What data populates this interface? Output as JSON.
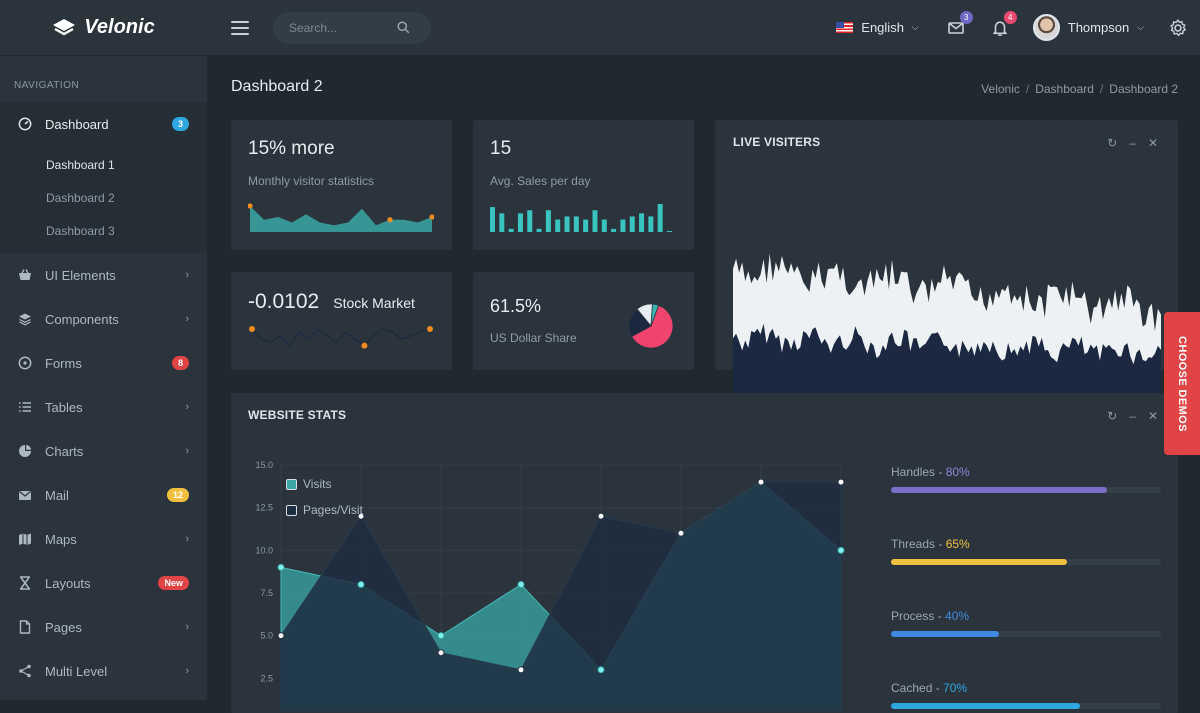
{
  "app": {
    "brand": "Velonic"
  },
  "topbar": {
    "search_placeholder": "Search...",
    "language": "English",
    "mail_count": "3",
    "notif_count": "4",
    "user_name": "Thompson"
  },
  "sidebar": {
    "title": "NAVIGATION",
    "items": [
      {
        "label": "Dashboard",
        "icon": "dashboard-icon",
        "badge": "3",
        "badge_color": "#2ea6e0"
      },
      {
        "label": "UI Elements",
        "icon": "shopping-basket-icon"
      },
      {
        "label": "Components",
        "icon": "layers-icon"
      },
      {
        "label": "Forms",
        "icon": "forms-icon",
        "badge": "8",
        "badge_color": "#e04444"
      },
      {
        "label": "Tables",
        "icon": "list-icon"
      },
      {
        "label": "Charts",
        "icon": "pie-chart-icon"
      },
      {
        "label": "Mail",
        "icon": "mail-icon",
        "badge": "12",
        "badge_color": "#f1c040"
      },
      {
        "label": "Maps",
        "icon": "map-icon"
      },
      {
        "label": "Layouts",
        "icon": "hourglass-icon",
        "badge": "New",
        "badge_color": "#e04444"
      },
      {
        "label": "Pages",
        "icon": "file-icon"
      },
      {
        "label": "Multi Level",
        "icon": "share-icon"
      }
    ],
    "dashboard_sub": [
      "Dashboard 1",
      "Dashboard 2",
      "Dashboard 3"
    ]
  },
  "page": {
    "title": "Dashboard 2",
    "breadcrumb": [
      "Velonic",
      "Dashboard",
      "Dashboard 2"
    ]
  },
  "stats": {
    "visitors": {
      "value": "15% more",
      "label": "Monthly visitor statistics"
    },
    "sales": {
      "value": "15",
      "label": "Avg. Sales per day"
    },
    "stock": {
      "value": "-0.0102",
      "label": "Stock Market"
    },
    "dollar": {
      "value": "61.5%",
      "label": "US Dollar Share"
    }
  },
  "live": {
    "title": "LIVE VISITERS"
  },
  "website": {
    "title": "WEBSITE STATS",
    "legend": [
      "Visits",
      "Pages/Visit"
    ],
    "progress": [
      {
        "name": "Handles",
        "sep": " - ",
        "pct_label": "80%",
        "value": 80,
        "color": "#7c6fc9"
      },
      {
        "name": "Threads",
        "sep": " - ",
        "pct_label": "65%",
        "value": 65,
        "color": "#f1c040"
      },
      {
        "name": "Process",
        "sep": " - ",
        "pct_label": "40%",
        "value": 40,
        "color": "#3f8ae0"
      },
      {
        "name": "Cached",
        "sep": " - ",
        "pct_label": "70%",
        "value": 70,
        "color": "#2ea6e0"
      }
    ]
  },
  "demo_tab": "CHOOSE DEMOS",
  "chart_data": [
    {
      "type": "area",
      "name": "website-stats",
      "ylim": [
        0,
        15
      ],
      "yticks": [
        "15.0",
        "12.5",
        "10.0",
        "7.5",
        "5.0",
        "2.5"
      ],
      "x": [
        0,
        1,
        2,
        3,
        4,
        5,
        6,
        7
      ],
      "series": [
        {
          "name": "Visits",
          "values": [
            9,
            8,
            5,
            8,
            3,
            11,
            14,
            10
          ],
          "color": "#3aa7a6"
        },
        {
          "name": "Pages/Visit",
          "values": [
            5,
            12,
            4,
            3,
            12,
            11,
            14,
            14
          ],
          "color": "#1e2d3f"
        }
      ]
    },
    {
      "type": "line",
      "name": "monthly-visitors-sparkline",
      "values": [
        8,
        3,
        4,
        2,
        5,
        2,
        1,
        2,
        7,
        1,
        3,
        3,
        2,
        4
      ],
      "highlight": [
        0,
        10,
        13
      ]
    },
    {
      "type": "bar",
      "name": "avg-sales-sparkline",
      "values": [
        8,
        6,
        1,
        6,
        7,
        1,
        7,
        4,
        5,
        5,
        4,
        7,
        4,
        1,
        4,
        5,
        6,
        5,
        9,
        0
      ]
    },
    {
      "type": "line",
      "name": "stock-market-sparkline",
      "values": [
        6,
        3,
        2,
        4,
        1,
        5,
        3,
        6,
        4,
        2,
        5,
        3,
        1,
        4,
        6,
        5,
        3,
        4,
        5,
        6
      ],
      "highlight": [
        0,
        12,
        19
      ]
    },
    {
      "type": "pie",
      "name": "us-dollar-share",
      "slices": [
        {
          "value": 61.5,
          "color": "#f0436d"
        },
        {
          "value": 22,
          "color": "#1b2940"
        },
        {
          "value": 12,
          "color": "#e8edf1"
        },
        {
          "value": 4.5,
          "color": "#39b6b4"
        }
      ]
    }
  ]
}
